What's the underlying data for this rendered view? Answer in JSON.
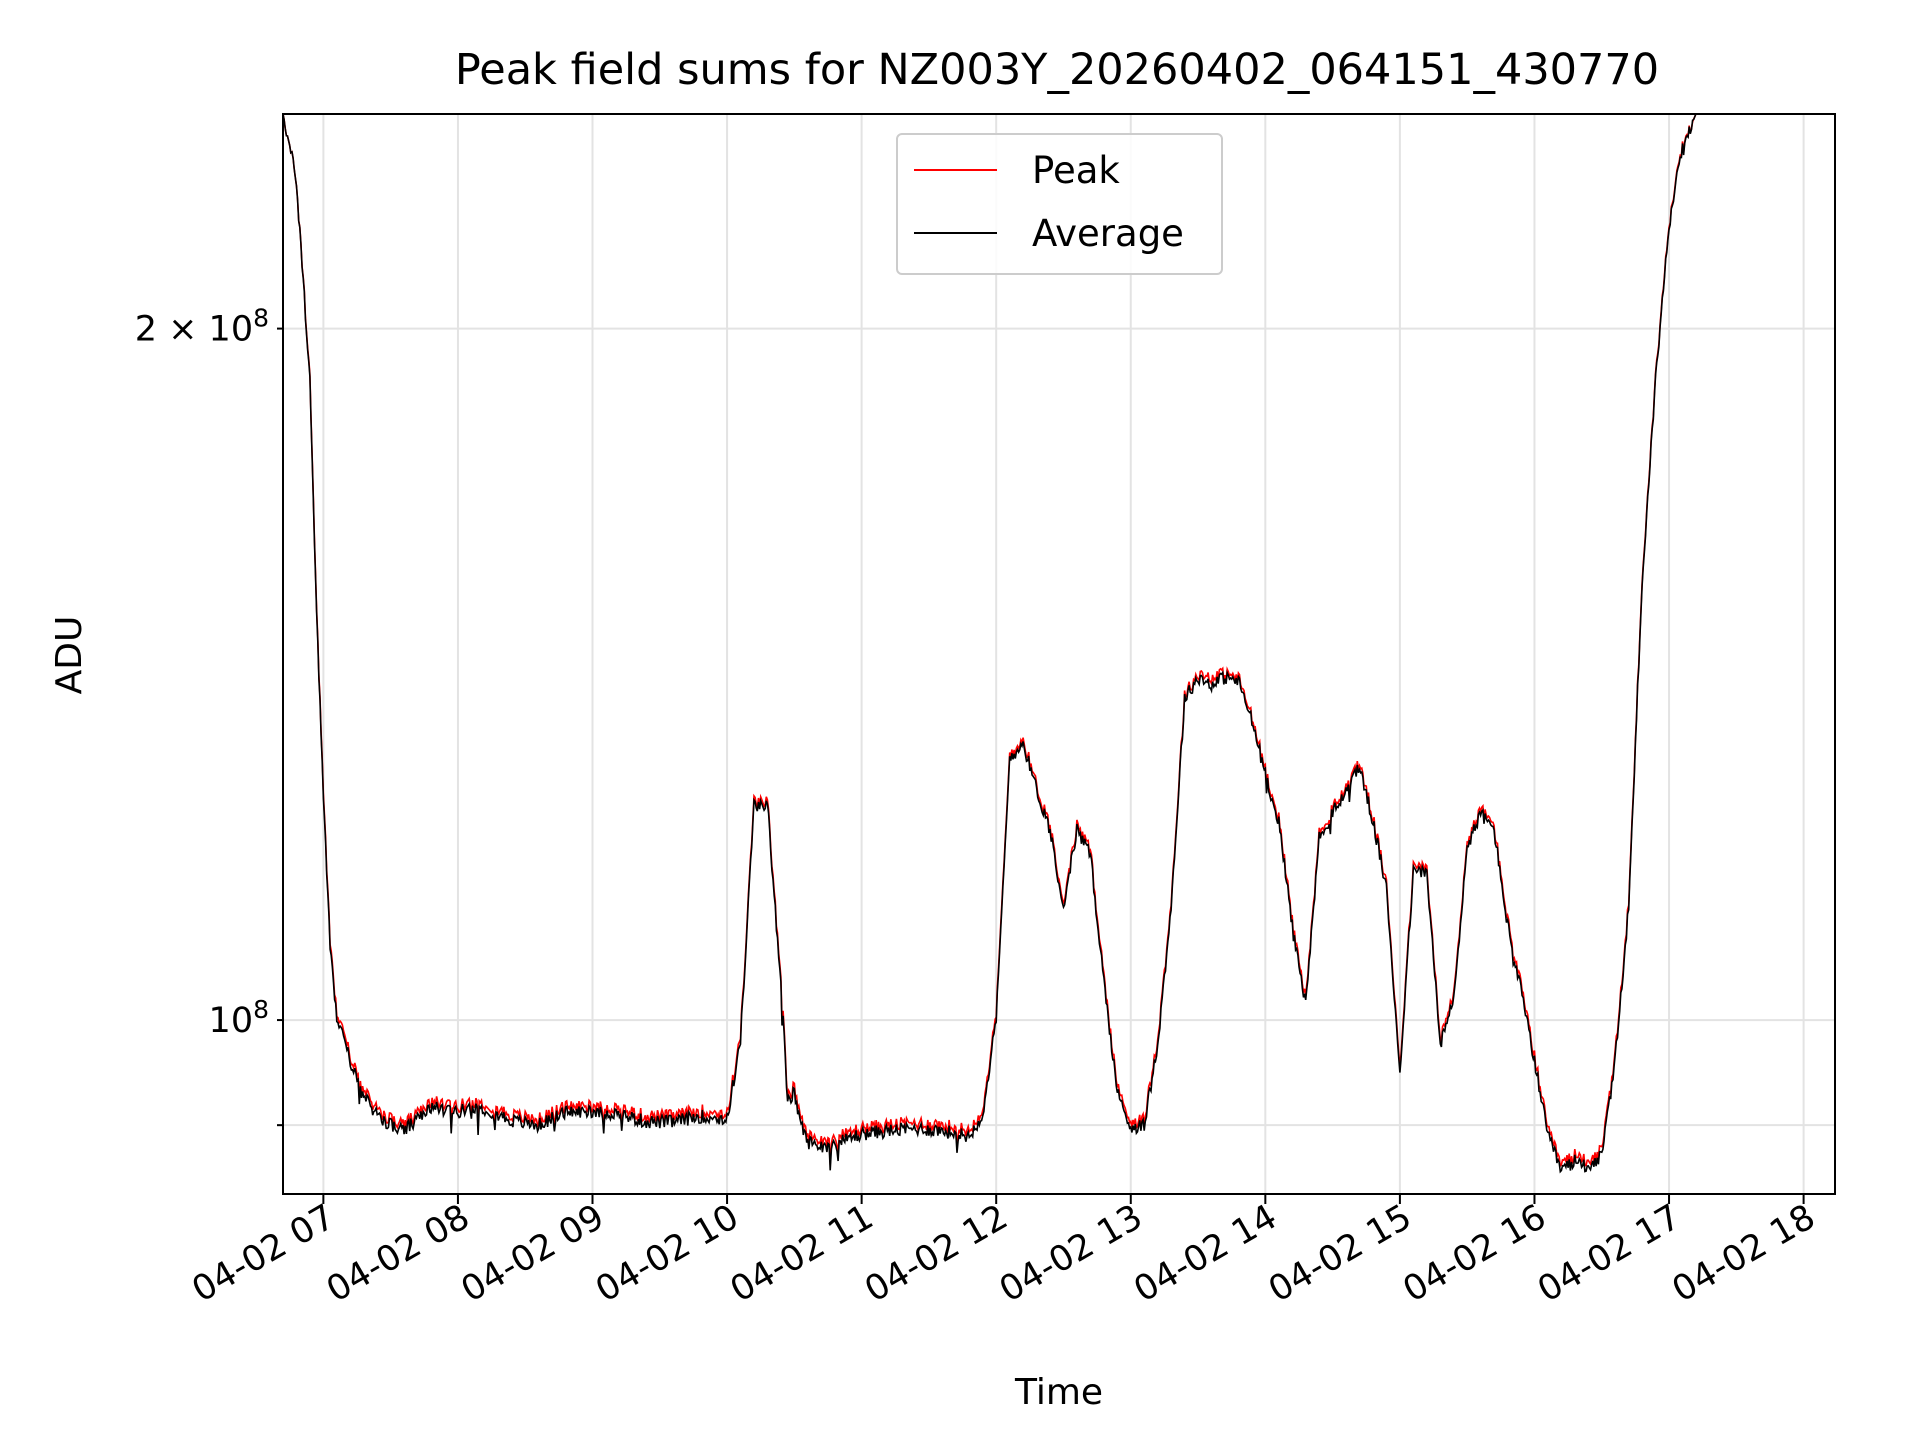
{
  "chart_data": {
    "type": "line",
    "title": "Peak field sums for NZ003Y_20260402_064151_430770",
    "xlabel": "Time",
    "ylabel": "ADU",
    "y_scale": "log",
    "xlim": [
      "04-02 06:42",
      "04-02 18:14"
    ],
    "ylim": [
      84000000,
      248000000
    ],
    "grid": true,
    "legend_placement": "upper center",
    "x_ticks": [
      "04-02 07",
      "04-02 08",
      "04-02 09",
      "04-02 10",
      "04-02 11",
      "04-02 12",
      "04-02 13",
      "04-02 14",
      "04-02 15",
      "04-02 16",
      "04-02 17",
      "04-02 18"
    ],
    "y_ticks": [
      {
        "value": 200000000,
        "mantissa": "2",
        "exponent": "8"
      },
      {
        "value": 100000000,
        "mantissa": "",
        "exponent": "8"
      }
    ],
    "colors": {
      "Peak": "#ff0000",
      "Average": "#000000"
    },
    "series": [
      {
        "name": "Peak"
      },
      {
        "name": "Average"
      }
    ],
    "x": [
      "06:42",
      "06:48",
      "06:54",
      "06:57",
      "07:00",
      "07:03",
      "07:06",
      "07:09",
      "07:12",
      "07:15",
      "07:18",
      "07:24",
      "07:30",
      "07:36",
      "07:42",
      "07:48",
      "07:54",
      "08:00",
      "08:12",
      "08:24",
      "08:36",
      "08:48",
      "08:54",
      "09:00",
      "09:12",
      "09:24",
      "09:36",
      "09:48",
      "10:00",
      "10:06",
      "10:12",
      "10:18",
      "10:24",
      "10:27",
      "10:30",
      "10:33",
      "10:36",
      "10:39",
      "10:42",
      "10:45",
      "10:48",
      "10:54",
      "11:00",
      "11:12",
      "11:24",
      "11:36",
      "11:48",
      "11:54",
      "12:00",
      "12:06",
      "12:12",
      "12:18",
      "12:24",
      "12:30",
      "12:36",
      "12:42",
      "12:48",
      "12:54",
      "13:00",
      "13:06",
      "13:12",
      "13:18",
      "13:24",
      "13:30",
      "13:36",
      "13:42",
      "13:48",
      "13:54",
      "14:00",
      "14:06",
      "14:12",
      "14:18",
      "14:24",
      "14:30",
      "14:36",
      "14:42",
      "14:48",
      "14:54",
      "15:00",
      "15:06",
      "15:12",
      "15:18",
      "15:24",
      "15:30",
      "15:36",
      "15:42",
      "15:48",
      "15:54",
      "16:00",
      "16:06",
      "16:12",
      "16:18",
      "16:24",
      "16:30",
      "16:36",
      "16:42",
      "16:48",
      "16:54",
      "17:00",
      "17:06",
      "17:12",
      "17:18",
      "17:24",
      "17:30",
      "17:36",
      "17:42",
      "17:48",
      "17:54",
      "18:00",
      "18:06",
      "18:12",
      "18:14"
    ],
    "y_average": [
      248000000,
      232000000,
      190000000,
      150000000,
      125000000,
      108000000,
      100000000,
      98500000,
      96000000,
      94000000,
      92500000,
      91000000,
      90000000,
      89500000,
      90500000,
      91500000,
      91500000,
      91300000,
      91500000,
      90400000,
      90000000,
      91200000,
      91200000,
      91300000,
      91000000,
      90300000,
      90300000,
      90800000,
      90500000,
      98000000,
      124000000,
      124000000,
      104000000,
      92000000,
      93000000,
      90000000,
      88500000,
      88300000,
      88200000,
      88200000,
      88200000,
      88800000,
      89200000,
      89500000,
      89700000,
      89500000,
      89000000,
      91000000,
      100000000,
      130000000,
      132000000,
      126000000,
      121000000,
      112000000,
      121000000,
      118000000,
      104000000,
      93000000,
      89800000,
      90000000,
      97500000,
      112000000,
      138000000,
      141000000,
      140000000,
      141000000,
      140500000,
      135000000,
      128000000,
      122000000,
      110000000,
      101500000,
      120000000,
      123000000,
      126000000,
      129000000,
      122000000,
      114000000,
      95000000,
      116000000,
      116000000,
      97500000,
      102000000,
      119000000,
      123000000,
      121000000,
      110000000,
      103000000,
      96000000,
      89000000,
      86000000,
      86800000,
      86400000,
      87200000,
      96000000,
      112000000,
      155000000,
      190000000,
      222000000,
      240000000,
      248000000,
      248000000,
      248000000,
      248000000,
      248000000,
      248000000,
      248000000,
      248000000,
      248000000,
      248000000,
      248000000,
      248000000
    ],
    "y_peak": [
      248000000,
      232000000,
      190500000,
      150500000,
      125500000,
      108500000,
      100500000,
      99000000,
      96500000,
      94500000,
      93000000,
      91500000,
      90500000,
      90000000,
      91000000,
      92000000,
      92000000,
      91800000,
      92000000,
      90900000,
      90500000,
      91700000,
      91700000,
      91800000,
      91500000,
      90800000,
      90800000,
      91300000,
      91000000,
      98500000,
      124500000,
      124500000,
      104500000,
      92500000,
      93500000,
      90500000,
      89000000,
      88800000,
      88700000,
      88700000,
      88700000,
      89300000,
      89700000,
      90000000,
      90200000,
      90000000,
      89500000,
      91500000,
      100500000,
      130500000,
      132500000,
      126500000,
      121500000,
      112500000,
      121500000,
      118500000,
      104500000,
      93500000,
      90300000,
      90500000,
      98000000,
      112500000,
      138500000,
      141500000,
      141000000,
      141500000,
      141000000,
      135500000,
      128500000,
      122500000,
      110500000,
      102000000,
      120500000,
      123500000,
      126500000,
      129500000,
      122500000,
      114500000,
      95500000,
      116500000,
      116500000,
      98000000,
      102500000,
      119500000,
      123500000,
      121500000,
      110500000,
      103500000,
      96500000,
      89500000,
      86500000,
      87300000,
      86900000,
      87700000,
      96500000,
      112500000,
      155500000,
      190500000,
      222500000,
      240500000,
      248000000,
      248000000,
      248000000,
      248000000,
      248000000,
      248000000,
      248000000,
      248000000,
      248000000,
      248000000,
      248000000,
      248000000
    ]
  }
}
